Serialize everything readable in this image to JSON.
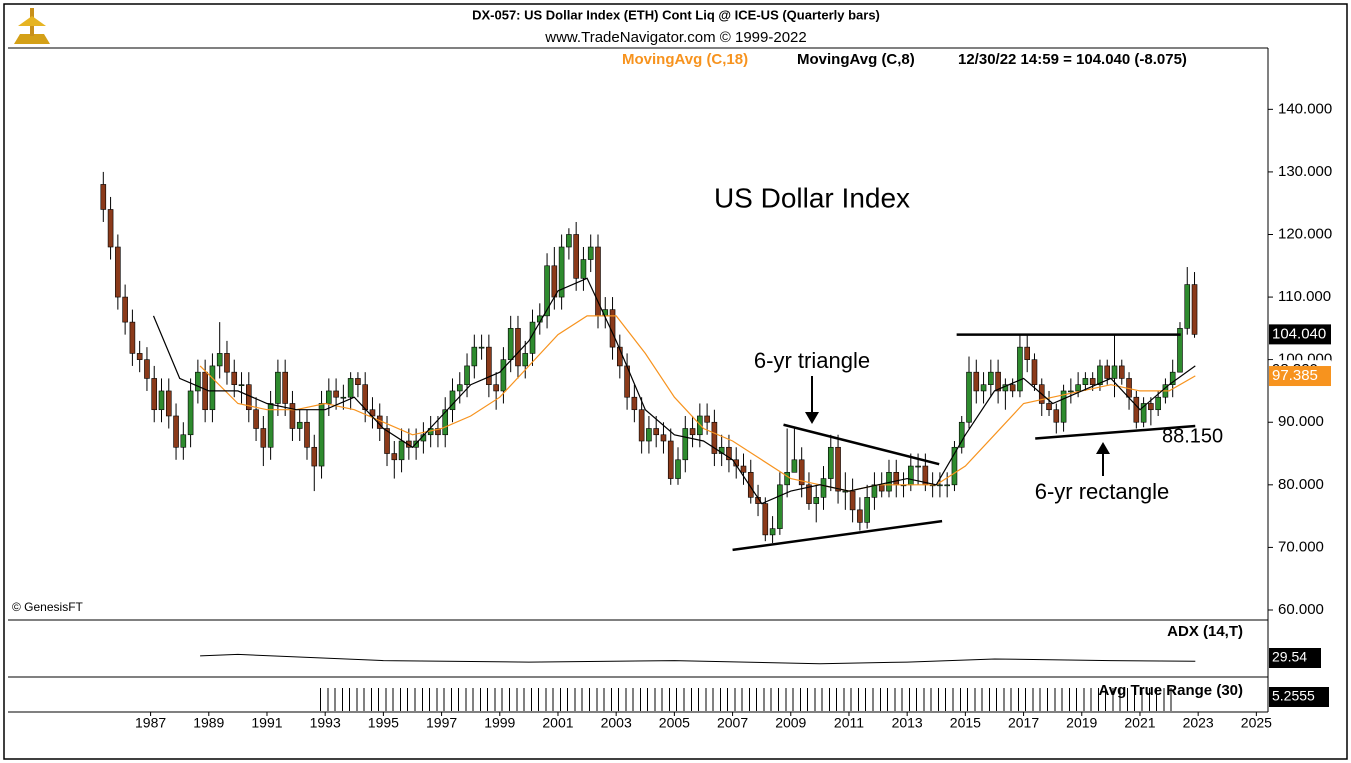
{
  "chart_data": {
    "type": "candlestick",
    "title": "DX-057:  US Dollar Index (ETH) Cont Liq @ ICE-US  (Quarterly bars)",
    "subtitle": "www.TradeNavigator.com © 1999-2022",
    "status": "12/30/22 14:59 = 104.040 (-8.075)",
    "credit": "© GenesisFT",
    "xlim": [
      1982.1,
      2025.4
    ],
    "xticks": [
      1987,
      1989,
      1991,
      1993,
      1995,
      1997,
      1999,
      2001,
      2003,
      2005,
      2007,
      2009,
      2011,
      2013,
      2015,
      2017,
      2019,
      2021,
      2023,
      2025
    ],
    "ylim": [
      58.4,
      149.8
    ],
    "yticks": [
      {
        "value": 60,
        "label": "60.000"
      },
      {
        "value": 70,
        "label": "70.000"
      },
      {
        "value": 80,
        "label": "80.000"
      },
      {
        "value": 90,
        "label": "90.000"
      },
      {
        "value": 100,
        "label": "100.000"
      },
      {
        "value": 110,
        "label": "110.000"
      },
      {
        "value": 120,
        "label": "120.000"
      },
      {
        "value": 130,
        "label": "130.000"
      },
      {
        "value": 140,
        "label": "140.000"
      }
    ],
    "up_color": "#2e8b2e",
    "down_color": "#8b3a1a",
    "x": [
      1985.375,
      1985.625,
      1985.875,
      1986.125,
      1986.375,
      1986.625,
      1986.875,
      1987.125,
      1987.375,
      1987.625,
      1987.875,
      1988.125,
      1988.375,
      1988.625,
      1988.875,
      1989.125,
      1989.375,
      1989.625,
      1989.875,
      1990.125,
      1990.375,
      1990.625,
      1990.875,
      1991.125,
      1991.375,
      1991.625,
      1991.875,
      1992.125,
      1992.375,
      1992.625,
      1992.875,
      1993.125,
      1993.375,
      1993.625,
      1993.875,
      1994.125,
      1994.375,
      1994.625,
      1994.875,
      1995.125,
      1995.375,
      1995.625,
      1995.875,
      1996.125,
      1996.375,
      1996.625,
      1996.875,
      1997.125,
      1997.375,
      1997.625,
      1997.875,
      1998.125,
      1998.375,
      1998.625,
      1998.875,
      1999.125,
      1999.375,
      1999.625,
      1999.875,
      2000.125,
      2000.375,
      2000.625,
      2000.875,
      2001.125,
      2001.375,
      2001.625,
      2001.875,
      2002.125,
      2002.375,
      2002.625,
      2002.875,
      2003.125,
      2003.375,
      2003.625,
      2003.875,
      2004.125,
      2004.375,
      2004.625,
      2004.875,
      2005.125,
      2005.375,
      2005.625,
      2005.875,
      2006.125,
      2006.375,
      2006.625,
      2006.875,
      2007.125,
      2007.375,
      2007.625,
      2007.875,
      2008.125,
      2008.375,
      2008.625,
      2008.875,
      2009.125,
      2009.375,
      2009.625,
      2009.875,
      2010.125,
      2010.375,
      2010.625,
      2010.875,
      2011.125,
      2011.375,
      2011.625,
      2011.875,
      2012.125,
      2012.375,
      2012.625,
      2012.875,
      2013.125,
      2013.375,
      2013.625,
      2013.875,
      2014.125,
      2014.375,
      2014.625,
      2014.875,
      2015.125,
      2015.375,
      2015.625,
      2015.875,
      2016.125,
      2016.375,
      2016.625,
      2016.875,
      2017.125,
      2017.375,
      2017.625,
      2017.875,
      2018.125,
      2018.375,
      2018.625,
      2018.875,
      2019.125,
      2019.375,
      2019.625,
      2019.875,
      2020.125,
      2020.375,
      2020.625,
      2020.875,
      2021.125,
      2021.375,
      2021.625,
      2021.875,
      2022.125,
      2022.375,
      2022.625,
      2022.875
    ],
    "open": [
      128,
      124,
      118,
      110,
      106,
      101,
      100,
      97,
      92,
      95,
      91,
      86,
      88,
      95,
      98,
      92,
      99,
      101,
      98,
      96,
      96,
      92,
      89,
      86,
      93,
      98,
      93,
      89,
      90,
      86,
      83,
      93,
      95,
      94,
      94,
      97,
      96,
      92,
      91,
      89,
      85,
      84,
      87,
      86,
      87,
      88,
      89,
      88,
      92,
      95,
      96,
      99,
      102,
      102,
      96,
      95,
      100,
      105,
      99,
      101,
      106,
      107,
      115,
      110,
      118,
      120,
      113,
      116,
      118,
      107,
      108,
      102,
      99,
      94,
      92,
      87,
      89,
      88,
      87,
      81,
      84,
      89,
      88,
      91,
      90,
      85,
      86,
      84,
      83,
      82,
      78,
      77,
      72,
      73,
      80,
      82,
      84,
      80,
      77,
      78,
      81,
      86,
      79,
      79,
      76,
      74,
      78,
      80,
      79,
      82,
      80,
      80,
      83,
      83,
      80,
      80,
      80,
      80,
      86,
      90,
      98,
      95,
      96,
      98,
      95,
      96,
      95,
      102,
      100,
      96,
      93,
      92,
      90,
      95,
      95,
      96,
      97,
      96,
      99,
      97,
      99,
      97,
      94,
      90,
      93,
      92,
      94,
      96,
      98,
      105,
      112
    ],
    "high": [
      130,
      126,
      120,
      112,
      108,
      103,
      102,
      99,
      97,
      97,
      93,
      90,
      97,
      100,
      100,
      101,
      106,
      103,
      100,
      98,
      98,
      94,
      91,
      95,
      100,
      100,
      95,
      92,
      92,
      88,
      95,
      97,
      97,
      96,
      98,
      98,
      98,
      94,
      93,
      91,
      87,
      89,
      89,
      89,
      90,
      91,
      91,
      94,
      97,
      98,
      101,
      104,
      104,
      104,
      98,
      102,
      107,
      107,
      103,
      108,
      109,
      117,
      118,
      120,
      121,
      122,
      118,
      120,
      120,
      110,
      110,
      104,
      101,
      96,
      94,
      91,
      91,
      90,
      89,
      86,
      91,
      91,
      93,
      93,
      92,
      88,
      88,
      86,
      85,
      84,
      80,
      78,
      75,
      82,
      89,
      89,
      86,
      82,
      80,
      83,
      88,
      88,
      82,
      81,
      78,
      80,
      82,
      82,
      84,
      84,
      82,
      85,
      85,
      85,
      82,
      82,
      82,
      87,
      91,
      100.5,
      100,
      98,
      100,
      100,
      97,
      97,
      104,
      104,
      101,
      97,
      95,
      93,
      96,
      97,
      98,
      98,
      98,
      100,
      100,
      104,
      100,
      98,
      95,
      94,
      94,
      95,
      97,
      100,
      106,
      114.8,
      114
    ],
    "low": [
      122,
      116,
      108,
      104,
      99,
      98,
      95,
      90,
      90,
      89,
      84,
      84,
      86,
      93,
      90,
      90,
      97,
      96,
      94,
      93,
      90,
      87,
      83,
      84,
      91,
      91,
      87,
      87,
      84,
      79,
      81,
      91,
      92,
      92,
      92,
      94,
      90,
      89,
      87,
      83,
      81,
      82,
      84,
      84,
      85,
      86,
      86,
      86,
      90,
      93,
      94,
      97,
      100,
      94,
      92,
      93,
      98,
      97,
      97,
      99,
      104,
      105,
      108,
      108,
      116,
      111,
      111,
      114,
      105,
      105,
      100,
      97,
      92,
      90,
      85,
      85,
      86,
      85,
      80,
      80,
      82,
      86,
      86,
      88,
      83,
      83,
      82,
      81,
      80,
      77,
      75,
      71,
      70.7,
      72,
      78,
      82,
      78,
      76,
      74,
      76,
      79,
      77,
      76,
      74,
      72.7,
      73,
      76,
      78,
      78,
      78,
      78,
      79,
      80,
      79,
      78,
      78,
      78,
      79,
      85,
      89,
      93,
      93,
      94,
      93,
      92,
      94,
      94,
      98,
      95,
      91,
      91,
      88.2,
      88.5,
      93,
      94,
      95,
      95,
      95,
      96,
      94,
      96,
      92,
      89,
      89.2,
      89.5,
      91,
      93,
      94,
      98,
      104,
      103.5
    ],
    "close": [
      124,
      118,
      110,
      106,
      101,
      100,
      97,
      92,
      95,
      91,
      86,
      88,
      95,
      98,
      92,
      99,
      101,
      98,
      96,
      96,
      92,
      89,
      86,
      93,
      98,
      93,
      89,
      90,
      86,
      83,
      93,
      95,
      94,
      94,
      97,
      96,
      92,
      91,
      89,
      85,
      84,
      87,
      86,
      87,
      88,
      89,
      88,
      92,
      95,
      96,
      99,
      102,
      102,
      96,
      95,
      100,
      105,
      99,
      101,
      106,
      107,
      115,
      110,
      118,
      120,
      113,
      116,
      118,
      107,
      108,
      102,
      99,
      94,
      92,
      87,
      89,
      88,
      87,
      81,
      84,
      89,
      88,
      91,
      90,
      85,
      86,
      84,
      83,
      82,
      78,
      77,
      72,
      73,
      80,
      82,
      84,
      80,
      77,
      78,
      81,
      86,
      79,
      79,
      76,
      74,
      78,
      80,
      79,
      82,
      80,
      80,
      83,
      83,
      80,
      80,
      80,
      80,
      86,
      90,
      98,
      95,
      96,
      98,
      95,
      96,
      95,
      102,
      100,
      96,
      93,
      92,
      90,
      95,
      95,
      96,
      97,
      96,
      99,
      97,
      99,
      97,
      94,
      90,
      93,
      92,
      94,
      96,
      98,
      105,
      112,
      104.04
    ],
    "series": [
      {
        "name": "MovingAvg (C,18)",
        "color": "#f7931e",
        "x": [
          1988.7,
          1990,
          1991,
          1992,
          1993,
          1994,
          1995,
          1996,
          1997,
          1998,
          1999,
          2000,
          2001,
          2002,
          2003,
          2004,
          2005,
          2006,
          2007,
          2008,
          2009,
          2010,
          2011,
          2012,
          2013,
          2014,
          2015,
          2016,
          2017,
          2018,
          2019,
          2020,
          2021,
          2022,
          2022.9
        ],
        "values": [
          99,
          93,
          92,
          92,
          93,
          92,
          90,
          88,
          89,
          91,
          94,
          99,
          104,
          107,
          107,
          101,
          94,
          89,
          87,
          84,
          81,
          80,
          79,
          80,
          80,
          80,
          83,
          88,
          93,
          94,
          95,
          96,
          95,
          95,
          97.4
        ]
      },
      {
        "name": "MovingAvg (C,8)",
        "color": "#000000",
        "x": [
          1987.1,
          1988,
          1989,
          1990,
          1991,
          1992,
          1993,
          1994,
          1995,
          1996,
          1997,
          1998,
          1999,
          2000,
          2001,
          2002,
          2003,
          2004,
          2005,
          2006,
          2007,
          2008,
          2009,
          2010,
          2011,
          2012,
          2013,
          2014,
          2015,
          2016,
          2017,
          2018,
          2019,
          2020,
          2021,
          2022,
          2022.9
        ],
        "values": [
          107,
          97,
          95,
          95,
          93,
          92,
          92,
          94,
          89,
          86,
          91,
          96,
          98,
          103,
          111,
          113,
          103,
          92,
          88,
          87,
          84,
          77,
          79,
          80,
          79,
          80,
          81,
          80,
          88,
          95,
          97,
          93,
          95,
          97,
          92,
          96,
          99
        ]
      }
    ],
    "price_labels": [
      {
        "value": 104.04,
        "label": "104.040",
        "color": "#000000"
      },
      {
        "value": 98.32,
        "label": "98.320",
        "color": "#ffffff"
      },
      {
        "value": 97.385,
        "label": "97.385",
        "color": "#f7931e"
      }
    ],
    "trendlines": [
      {
        "x": [
          2008.75,
          2014.1
        ],
        "y": [
          89.6,
          83.3
        ]
      },
      {
        "x": [
          2007.0,
          2014.2
        ],
        "y": [
          69.6,
          74.2
        ]
      },
      {
        "x": [
          2014.7,
          2022.4
        ],
        "y": [
          104,
          104
        ]
      },
      {
        "x": [
          2017.4,
          2022.9
        ],
        "y": [
          87.4,
          89.4
        ]
      }
    ],
    "annotations": {
      "main": "US Dollar Index",
      "triangle": "6-yr triangle",
      "rectangle": "6-yr rectangle",
      "level": "88.150"
    },
    "adx": {
      "name": "ADX (14,T)",
      "ylim": [
        20,
        55
      ],
      "x": [
        1988.7,
        1990,
        1995,
        2000,
        2005,
        2010,
        2013,
        2016,
        2020,
        2022.9
      ],
      "values": [
        33,
        34,
        30,
        29,
        30,
        28,
        29,
        31,
        30,
        29.54
      ],
      "value_label": "29.54"
    },
    "atr": {
      "name": "Avg True Range (30)",
      "value_label": "5.2555"
    }
  }
}
